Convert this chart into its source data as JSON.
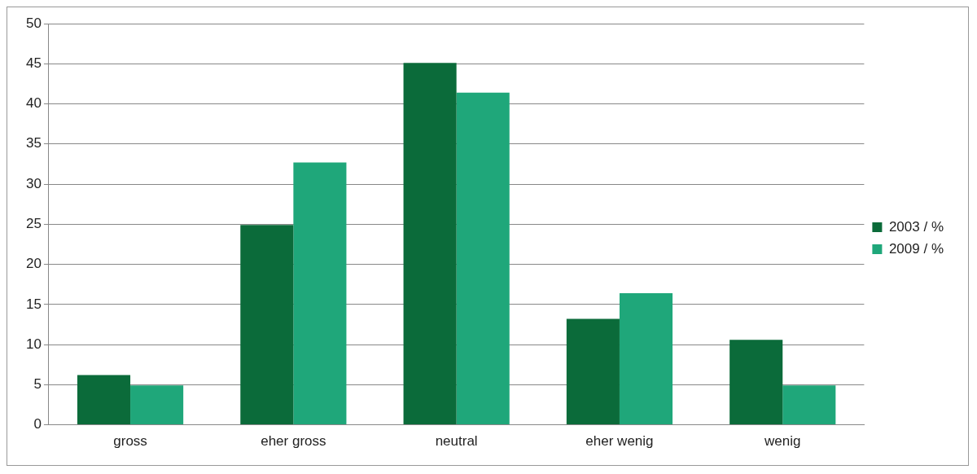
{
  "chart_data": {
    "type": "bar",
    "categories": [
      "gross",
      "eher gross",
      "neutral",
      "eher wenig",
      "wenig"
    ],
    "series": [
      {
        "name": "2003 / %",
        "color": "#0b6b3a",
        "values": [
          6.2,
          24.9,
          45.1,
          13.2,
          10.6
        ]
      },
      {
        "name": "2009 / %",
        "color": "#1fa77a",
        "values": [
          4.9,
          32.7,
          41.4,
          16.4,
          4.9
        ]
      }
    ],
    "ylim": [
      0,
      50
    ],
    "yticks": [
      0,
      5,
      10,
      15,
      20,
      25,
      30,
      35,
      40,
      45,
      50
    ],
    "grid": "y",
    "legend": "right"
  }
}
